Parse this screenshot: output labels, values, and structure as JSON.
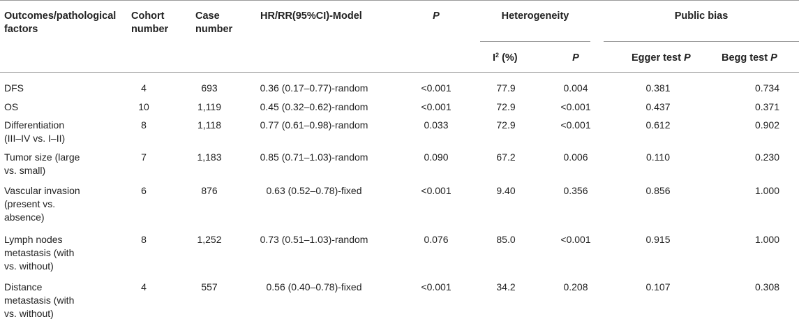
{
  "table": {
    "headers": {
      "factor": [
        "Outcomes/pathological",
        "factors"
      ],
      "cohort": [
        "Cohort",
        "number"
      ],
      "case": [
        "Case",
        "number"
      ],
      "model": "HR/RR(95%CI)-Model",
      "p": "P",
      "heterogeneity": "Heterogeneity",
      "i2_prefix": "I",
      "i2_sup": "2",
      "i2_suffix": " (%)",
      "het_p": "P",
      "public_bias": "Public bias",
      "egger_prefix": "Egger test ",
      "egger_p": "P",
      "begg_prefix": "Begg test ",
      "begg_p": "P"
    },
    "rows": [
      {
        "factor": [
          "DFS"
        ],
        "cohort": "4",
        "case": "693",
        "model": "0.36 (0.17–0.77)-random",
        "p": "<0.001",
        "i2": "77.9",
        "het_p": "0.004",
        "egger": "0.381",
        "begg": "0.734"
      },
      {
        "factor": [
          "OS"
        ],
        "cohort": "10",
        "case": "1,119",
        "model": "0.45 (0.32–0.62)-random",
        "p": "<0.001",
        "i2": "72.9",
        "het_p": "<0.001",
        "egger": "0.437",
        "begg": "0.371"
      },
      {
        "factor": [
          "Differentiation",
          "(III–IV vs. I–II)"
        ],
        "cohort": "8",
        "case": "1,118",
        "model": "0.77 (0.61–0.98)-random",
        "p": "0.033",
        "i2": "72.9",
        "het_p": "<0.001",
        "egger": "0.612",
        "begg": "0.902"
      },
      {
        "factor": [
          "Tumor size (large",
          "vs. small)"
        ],
        "cohort": "7",
        "case": "1,183",
        "model": "0.85 (0.71–1.03)-random",
        "p": "0.090",
        "i2": "67.2",
        "het_p": "0.006",
        "egger": "0.110",
        "begg": "0.230"
      },
      {
        "factor": [
          "Vascular invasion",
          "(present vs.",
          "absence)"
        ],
        "cohort": "6",
        "case": "876",
        "model": "0.63 (0.52–0.78)-fixed",
        "p": "<0.001",
        "i2": "9.40",
        "het_p": "0.356",
        "egger": "0.856",
        "begg": "1.000"
      },
      {
        "factor": [
          "Lymph nodes",
          "metastasis (with",
          "vs. without)"
        ],
        "cohort": "8",
        "case": "1,252",
        "model": "0.73 (0.51–1.03)-random",
        "p": "0.076",
        "i2": "85.0",
        "het_p": "<0.001",
        "egger": "0.915",
        "begg": "1.000"
      },
      {
        "factor": [
          "Distance",
          "metastasis (with",
          "vs. without)"
        ],
        "cohort": "4",
        "case": "557",
        "model": "0.56 (0.40–0.78)-fixed",
        "p": "<0.001",
        "i2": "34.2",
        "het_p": "0.208",
        "egger": "0.107",
        "begg": "0.308"
      }
    ]
  }
}
